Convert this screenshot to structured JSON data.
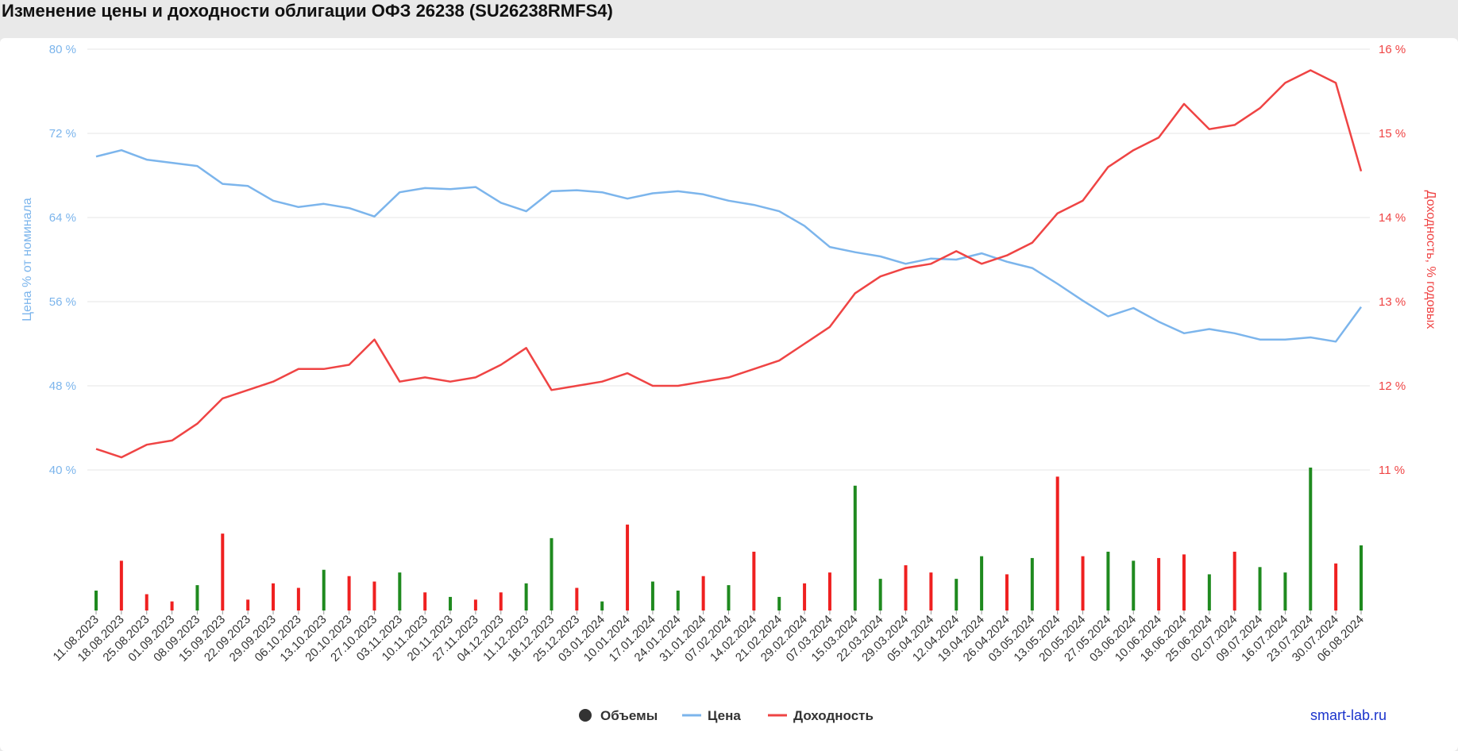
{
  "page_title": "Изменение цены и доходности облигации ОФЗ 26238 (SU26238RMFS4)",
  "watermark": "smart-lab.ru",
  "colors": {
    "price": "#7cb5ec",
    "yield": "#ef4444",
    "vol_up": "#1f8a1f",
    "vol_down": "#ef2020",
    "grid": "#e6e6e6",
    "legend_text": "#333333"
  },
  "legend": [
    {
      "label": "Объемы",
      "kind": "dot",
      "color": "#333333"
    },
    {
      "label": "Цена",
      "kind": "line",
      "color": "#7cb5ec"
    },
    {
      "label": "Доходность",
      "kind": "line",
      "color": "#ef4444"
    }
  ],
  "chart_data": {
    "type": "line",
    "title": "Изменение цены и доходности облигации ОФЗ 26238 (SU26238RMFS4)",
    "x_dates": [
      "11.08.2023",
      "18.08.2023",
      "25.08.2023",
      "01.09.2023",
      "08.09.2023",
      "15.09.2023",
      "22.09.2023",
      "29.09.2023",
      "06.10.2023",
      "13.10.2023",
      "20.10.2023",
      "27.10.2023",
      "03.11.2023",
      "10.11.2023",
      "20.11.2023",
      "27.11.2023",
      "04.12.2023",
      "11.12.2023",
      "18.12.2023",
      "25.12.2023",
      "03.01.2024",
      "10.01.2024",
      "17.01.2024",
      "24.01.2024",
      "31.01.2024",
      "07.02.2024",
      "14.02.2024",
      "21.02.2024",
      "29.02.2024",
      "07.03.2024",
      "15.03.2024",
      "22.03.2024",
      "29.03.2024",
      "05.04.2024",
      "12.04.2024",
      "19.04.2024",
      "26.04.2024",
      "03.05.2024",
      "13.05.2024",
      "20.05.2024",
      "27.05.2024",
      "03.06.2024",
      "10.06.2024",
      "18.06.2024",
      "25.06.2024",
      "02.07.2024",
      "09.07.2024",
      "16.07.2024",
      "23.07.2024",
      "30.07.2024",
      "06.08.2024"
    ],
    "y_left": {
      "label": "Цена % от номинала",
      "ticks": [
        "40 %",
        "48 %",
        "56 %",
        "64 %",
        "72 %",
        "80 %"
      ],
      "min": 40,
      "max": 80
    },
    "y_right": {
      "label": "Доходность, % годовых",
      "ticks": [
        "11 %",
        "12 %",
        "13 %",
        "14 %",
        "15 %",
        "16 %"
      ],
      "min": 11,
      "max": 16
    },
    "series": [
      {
        "name": "Цена",
        "axis": "left",
        "color": "#7cb5ec",
        "values": [
          69.8,
          70.4,
          69.5,
          69.2,
          68.9,
          67.2,
          67.0,
          65.6,
          65.0,
          65.3,
          64.9,
          64.1,
          66.4,
          66.8,
          66.7,
          66.9,
          65.4,
          64.6,
          66.5,
          66.6,
          66.4,
          65.8,
          66.3,
          66.5,
          66.2,
          65.6,
          65.2,
          64.6,
          63.2,
          61.2,
          60.7,
          60.3,
          59.6,
          60.1,
          60.0,
          60.6,
          59.8,
          59.2,
          57.7,
          56.1,
          54.6,
          55.4,
          54.1,
          53.0,
          53.4,
          53.0,
          52.4,
          52.4,
          52.6,
          52.2,
          55.5
        ]
      },
      {
        "name": "Доходность",
        "axis": "right",
        "color": "#ef4444",
        "values": [
          11.25,
          11.15,
          11.3,
          11.35,
          11.55,
          11.85,
          11.95,
          12.05,
          12.2,
          12.2,
          12.25,
          12.55,
          12.05,
          12.1,
          12.05,
          12.1,
          12.25,
          12.45,
          11.95,
          12.0,
          12.05,
          12.15,
          12.0,
          12.0,
          12.05,
          12.1,
          12.2,
          12.3,
          12.5,
          12.7,
          13.1,
          13.3,
          13.4,
          13.45,
          13.6,
          13.45,
          13.55,
          13.7,
          14.05,
          14.2,
          14.6,
          14.8,
          14.95,
          15.35,
          15.05,
          15.1,
          15.3,
          15.6,
          15.75,
          15.6,
          14.55
        ]
      }
    ],
    "volumes": {
      "up": [
        1,
        0,
        0,
        0,
        1,
        0,
        0,
        0,
        0,
        1,
        0,
        0,
        1,
        0,
        1,
        0,
        0,
        1,
        1,
        0,
        1,
        0,
        1,
        1,
        0,
        1,
        0,
        1,
        0,
        0,
        1,
        1,
        0,
        0,
        1,
        1,
        0,
        1,
        0,
        0,
        1,
        1,
        0,
        0,
        1,
        0,
        1,
        1,
        1,
        0,
        1
      ],
      "values": [
        22,
        55,
        18,
        10,
        28,
        85,
        12,
        30,
        25,
        45,
        38,
        32,
        42,
        20,
        15,
        12,
        20,
        30,
        80,
        25,
        10,
        95,
        32,
        22,
        38,
        28,
        65,
        15,
        30,
        42,
        138,
        35,
        50,
        42,
        35,
        60,
        40,
        58,
        148,
        60,
        65,
        55,
        58,
        62,
        40,
        65,
        48,
        42,
        158,
        52,
        72
      ]
    },
    "ylim": [
      40,
      80
    ],
    "grid": "horizontal",
    "legend_position": "bottom-center"
  }
}
